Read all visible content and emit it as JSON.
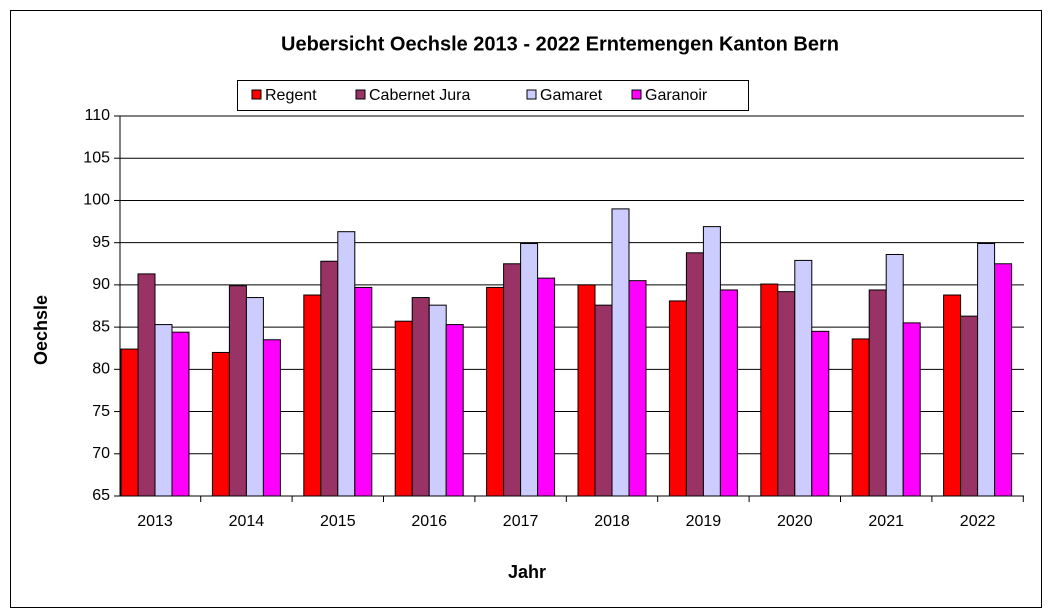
{
  "chart_data": {
    "type": "bar",
    "title": "Uebersicht Oechsle 2013 - 2022 Erntemengen Kanton Bern",
    "x_label": "Jahr",
    "y_label": "Oechsle",
    "categories": [
      "2013",
      "2014",
      "2015",
      "2016",
      "2017",
      "2018",
      "2019",
      "2020",
      "2021",
      "2022"
    ],
    "series": [
      {
        "name": "Regent",
        "color": "#ff0000",
        "values": [
          82.4,
          82.0,
          88.8,
          85.7,
          89.7,
          90.0,
          88.1,
          90.1,
          83.6,
          88.8
        ]
      },
      {
        "name": "Cabernet Jura",
        "color": "#993366",
        "values": [
          91.3,
          89.9,
          92.8,
          88.5,
          92.5,
          87.6,
          93.8,
          89.2,
          89.4,
          86.3
        ]
      },
      {
        "name": "Gamaret",
        "color": "#ccccff",
        "values": [
          85.3,
          88.5,
          96.3,
          87.6,
          94.9,
          99.0,
          96.9,
          92.9,
          93.6,
          94.9
        ]
      },
      {
        "name": "Garanoir",
        "color": "#ff00ff",
        "values": [
          84.4,
          83.5,
          89.7,
          85.3,
          90.8,
          90.5,
          89.4,
          84.5,
          85.5,
          92.5
        ]
      }
    ],
    "ylim": [
      65,
      110
    ],
    "yticks": [
      65,
      70,
      75,
      80,
      85,
      90,
      95,
      100,
      105,
      110
    ],
    "grid": true,
    "legend": "top"
  }
}
